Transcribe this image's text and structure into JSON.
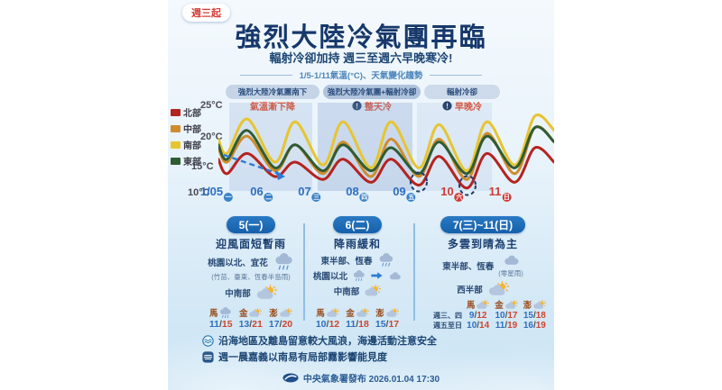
{
  "header": {
    "badge": "週三起",
    "title": "強烈大陸冷氣團再臨",
    "subtitle": "輻射冷卻加持 週三至週六早晚寒冷!",
    "chart_caption": "1/5-1/11氣溫(°C)、天氣變化趨勢"
  },
  "chart": {
    "phases": [
      {
        "label": "強烈大陸冷氣團南下",
        "note": "氣溫漸下降"
      },
      {
        "label": "強烈大陸冷氣團+輻射冷卻",
        "note": "整天冷"
      },
      {
        "label": "輻射冷卻",
        "note": "早晚冷"
      }
    ],
    "legend": [
      {
        "name": "北部",
        "color": "#b5231f"
      },
      {
        "name": "中部",
        "color": "#d08c2a"
      },
      {
        "name": "南部",
        "color": "#e7c52f"
      },
      {
        "name": "東部",
        "color": "#2f5c33"
      }
    ],
    "yticks": [
      "25°C",
      "20°C",
      "15°C",
      "10°C"
    ]
  },
  "chart_data": {
    "type": "line",
    "title": "1/5-1/11氣溫(°C)、天氣變化趨勢",
    "ylabel": "氣溫(°C)",
    "ylim": [
      10,
      25
    ],
    "grid": false,
    "legend_position": "left",
    "x": [
      {
        "day": "1/05",
        "weekday": "一"
      },
      {
        "day": "06",
        "weekday": "二"
      },
      {
        "day": "07",
        "weekday": "三"
      },
      {
        "day": "08",
        "weekday": "四"
      },
      {
        "day": "09",
        "weekday": "五"
      },
      {
        "day": "10",
        "weekday": "六"
      },
      {
        "day": "11",
        "weekday": "日"
      }
    ],
    "series": [
      {
        "name": "北部",
        "color": "#b5231f",
        "daily_min": [
          13,
          12.5,
          12,
          11.5,
          11,
          10.5,
          11.5
        ],
        "daily_max": [
          16.5,
          15,
          15.5,
          15.5,
          16,
          16.5,
          17.5
        ]
      },
      {
        "name": "中部",
        "color": "#d08c2a",
        "daily_min": [
          15,
          13.5,
          13,
          12.5,
          12.5,
          12,
          13
        ],
        "daily_max": [
          19.5,
          18,
          18.5,
          19,
          19,
          20,
          21
        ]
      },
      {
        "name": "南部",
        "color": "#e7c52f",
        "daily_min": [
          16.5,
          15,
          14.5,
          14,
          14,
          13.5,
          14.5
        ],
        "daily_max": [
          22.5,
          22,
          22,
          22,
          21.5,
          22,
          23
        ]
      },
      {
        "name": "東部",
        "color": "#2f5c33",
        "daily_min": [
          15.5,
          14,
          13.5,
          13.5,
          13,
          13,
          14
        ],
        "daily_max": [
          20.5,
          18,
          18,
          17.5,
          18.5,
          19.5,
          21
        ]
      }
    ],
    "annotations": {
      "trend_note": "氣溫漸下降",
      "circled_lows_days": [
        "09",
        "10"
      ]
    }
  },
  "panels": [
    {
      "header": "5(一)",
      "title": "迎風面短暫雨",
      "rows": [
        {
          "label": "桃園以北、宜花"
        },
        {
          "note": "(竹苗、臺東、恆春半島雨)"
        },
        {
          "label": "中南部"
        }
      ],
      "islands": [
        {
          "name": "馬",
          "low": "11",
          "high": "15"
        },
        {
          "name": "金",
          "low": "13",
          "high": "21"
        },
        {
          "name": "澎",
          "low": "17",
          "high": "20"
        }
      ]
    },
    {
      "header": "6(二)",
      "title": "降雨緩和",
      "rows": [
        {
          "label": "東半部、恆春"
        },
        {
          "label": "桃園以北"
        },
        {
          "label": "中南部"
        }
      ],
      "islands": [
        {
          "name": "馬",
          "low": "10",
          "high": "12"
        },
        {
          "name": "金",
          "low": "11",
          "high": "18"
        },
        {
          "name": "澎",
          "low": "15",
          "high": "17"
        }
      ]
    },
    {
      "header": "7(三)~11(日)",
      "title": "多雲到晴為主",
      "rows": [
        {
          "label": "東半部、恆春",
          "note": "(零星雨)"
        },
        {
          "label": "西半部"
        }
      ],
      "islands_header": [
        "馬",
        "金",
        "澎"
      ],
      "island_rows": [
        {
          "label": "週三、四",
          "temps": [
            {
              "low": "9",
              "high": "12"
            },
            {
              "low": "10",
              "high": "17"
            },
            {
              "low": "15",
              "high": "18"
            }
          ]
        },
        {
          "label": "週五至日",
          "temps": [
            {
              "low": "10",
              "high": "14"
            },
            {
              "low": "11",
              "high": "19"
            },
            {
              "low": "16",
              "high": "19"
            }
          ]
        }
      ]
    }
  ],
  "notes": [
    {
      "text": "沿海地區及離島留意較大風浪，海邊活動注意安全"
    },
    {
      "text": "週一晨嘉義以南易有局部霧影響能見度"
    }
  ],
  "footer": {
    "text": "中央氣象署發布 2026.01.04 17:30"
  }
}
